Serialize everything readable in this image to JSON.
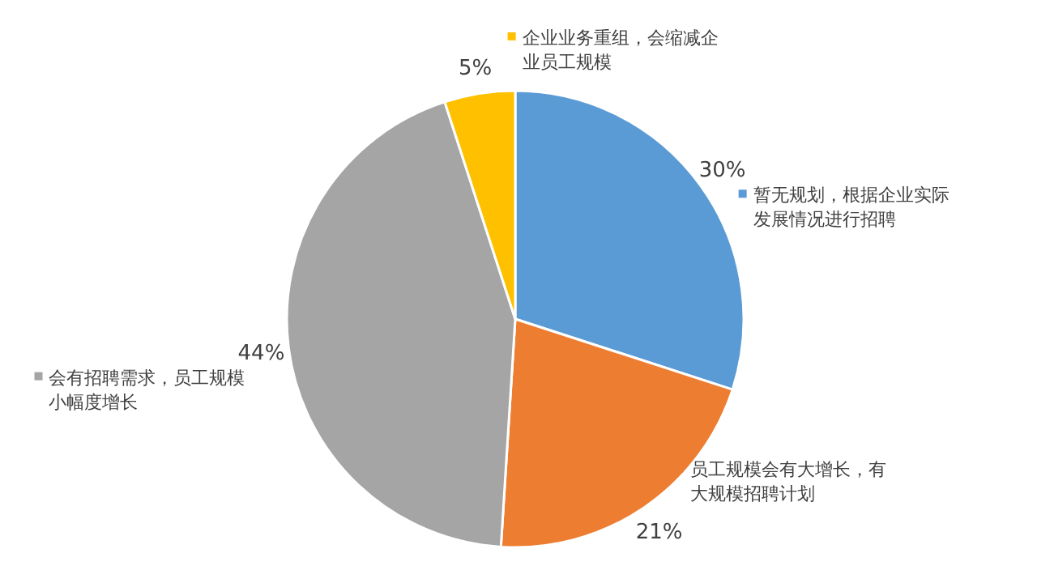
{
  "chart_data": {
    "type": "pie",
    "categories": [
      "暂无规划，根据企业实际发展情况进行招聘",
      "员工规模会有大增长，有大规模招聘计划",
      "会有招聘需求，员工规模小幅度增长",
      "企业业务重组，会缩减企业员工规模"
    ],
    "values": [
      30,
      21,
      44,
      5
    ],
    "colors": [
      "#5b9bd5",
      "#ed7d31",
      "#a5a5a5",
      "#ffc000"
    ],
    "value_labels": [
      "30%",
      "21%",
      "44%",
      "5%"
    ],
    "legend": "top left"
  }
}
